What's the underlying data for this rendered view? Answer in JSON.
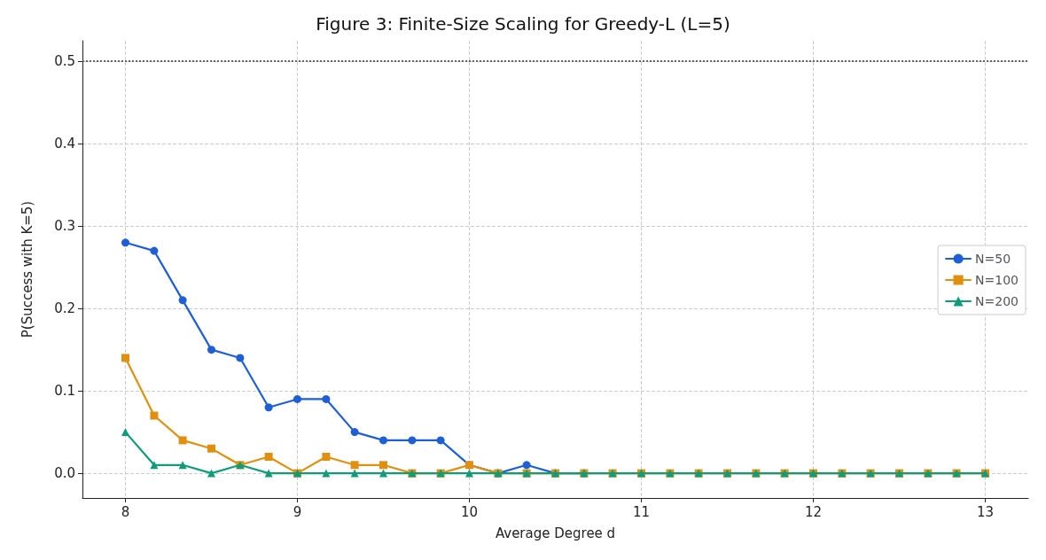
{
  "chart_data": {
    "type": "line",
    "title": "Figure 3: Finite-Size Scaling for Greedy-L (L=5)",
    "xlabel": "Average Degree d",
    "ylabel": "P(Success with K=5)",
    "x": [
      8,
      8.167,
      8.333,
      8.5,
      8.667,
      8.833,
      9,
      9.167,
      9.333,
      9.5,
      9.667,
      9.833,
      10,
      10.167,
      10.333,
      10.5,
      10.667,
      10.833,
      11,
      11.167,
      11.333,
      11.5,
      11.667,
      11.833,
      12,
      12.167,
      12.333,
      12.5,
      12.667,
      12.833,
      13
    ],
    "series": [
      {
        "name": "N=50",
        "color": "#1f5fd6",
        "marker": "circle",
        "values": [
          0.28,
          0.27,
          0.21,
          0.15,
          0.14,
          0.08,
          0.09,
          0.09,
          0.05,
          0.04,
          0.04,
          0.04,
          0.01,
          0,
          0.01,
          0,
          0,
          null,
          null,
          null,
          null,
          null,
          null,
          null,
          null,
          null,
          null,
          null,
          null,
          null,
          null
        ]
      },
      {
        "name": "N=100",
        "color": "#e0900f",
        "marker": "square",
        "values": [
          0.14,
          0.07,
          0.04,
          0.03,
          0.01,
          0.02,
          0,
          0.02,
          0.01,
          0.01,
          0,
          0,
          0.01,
          0,
          0,
          0,
          0,
          0,
          0,
          0,
          0,
          0,
          0,
          0,
          0,
          0,
          0,
          0,
          0,
          0,
          0
        ]
      },
      {
        "name": "N=200",
        "color": "#109c78",
        "marker": "triangle",
        "values": [
          0.05,
          0.01,
          0.01,
          0,
          0.01,
          0,
          0,
          0,
          0,
          0,
          0,
          0,
          0,
          0,
          0,
          0,
          0,
          0,
          0,
          0,
          0,
          0,
          0,
          0,
          0,
          0,
          0,
          0,
          0,
          0,
          0
        ]
      }
    ],
    "xlim": [
      7.75,
      13.25
    ],
    "xticks": [
      8,
      9,
      10,
      11,
      12,
      13
    ],
    "ylim": [
      -0.03,
      0.525
    ],
    "yticks": [
      {
        "value": 0,
        "label": "0.0"
      },
      0.1,
      0.2,
      0.3,
      0.4,
      0.5
    ],
    "ref_lines": [
      {
        "axis": "y",
        "value": 0.5,
        "color": "#666666",
        "line_style": "dotted"
      }
    ],
    "grid": true,
    "legend": "right",
    "line_style": "solid"
  }
}
